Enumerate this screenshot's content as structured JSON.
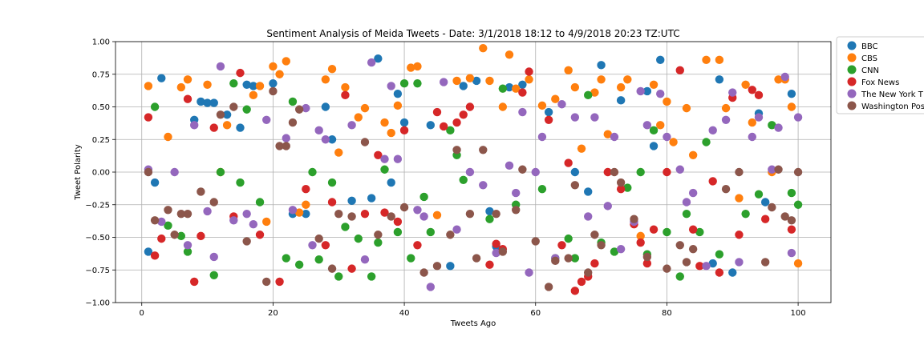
{
  "chart_data": {
    "type": "scatter",
    "title": "Sentiment Analysis of Meida Tweets - Date: 3/1/2018 18:12 to 4/9/2018 20:23 TZ:UTC",
    "xlabel": "Tweets Ago",
    "ylabel": "Tweet Polarity",
    "xlim": [
      -4,
      105
    ],
    "ylim": [
      -1.0,
      1.0
    ],
    "x_ticks": [
      0,
      20,
      40,
      60,
      80,
      100
    ],
    "x_tick_labels": [
      "0",
      "20",
      "40",
      "60",
      "80",
      "100"
    ],
    "y_ticks": [
      -1.0,
      -0.75,
      -0.5,
      -0.25,
      0.0,
      0.25,
      0.5,
      0.75,
      1.0
    ],
    "y_tick_labels": [
      "−1.00",
      "−0.75",
      "−0.50",
      "−0.25",
      "0.00",
      "0.25",
      "0.50",
      "0.75",
      "1.00"
    ],
    "grid": true,
    "legend_position": "outside-top-right",
    "legend_labels": [
      "BBC",
      "CBS",
      "CNN",
      "Fox News",
      "The New York T",
      "Washington Pos"
    ],
    "series": [
      {
        "name": "BBC",
        "color": "#1f77b4",
        "x": [
          1,
          2,
          3,
          8,
          9,
          10,
          11,
          13,
          15,
          16,
          17,
          20,
          23,
          25,
          28,
          29,
          32,
          35,
          36,
          38,
          39,
          40,
          44,
          47,
          49,
          51,
          53,
          54,
          56,
          58,
          62,
          66,
          68,
          70,
          73,
          77,
          78,
          79,
          87,
          88,
          90,
          94,
          95,
          99
        ],
        "y": [
          -0.61,
          -0.08,
          0.72,
          0.4,
          0.54,
          0.53,
          0.53,
          0.44,
          0.34,
          0.67,
          0.66,
          0.68,
          -0.32,
          -0.32,
          0.5,
          0.25,
          -0.22,
          -0.2,
          0.87,
          -0.08,
          0.6,
          0.38,
          0.36,
          -0.72,
          0.66,
          0.7,
          -0.3,
          -0.57,
          0.65,
          0.67,
          0.46,
          0.0,
          -0.15,
          0.82,
          0.55,
          0.62,
          0.2,
          0.86,
          -0.7,
          0.71,
          -0.77,
          0.45,
          -0.23,
          0.6
        ]
      },
      {
        "name": "CBS",
        "color": "#ff7f0e",
        "x": [
          1,
          4,
          6,
          7,
          10,
          12,
          13,
          17,
          18,
          19,
          20,
          21,
          22,
          24,
          25,
          28,
          29,
          30,
          31,
          33,
          34,
          37,
          38,
          39,
          41,
          42,
          45,
          48,
          50,
          52,
          53,
          55,
          56,
          57,
          59,
          61,
          63,
          65,
          66,
          67,
          69,
          70,
          71,
          73,
          74,
          76,
          78,
          79,
          80,
          81,
          83,
          84,
          86,
          88,
          89,
          91,
          92,
          93,
          96,
          97,
          98,
          99,
          100
        ],
        "y": [
          0.66,
          0.27,
          0.65,
          0.71,
          0.67,
          0.0,
          0.36,
          0.59,
          0.66,
          -0.38,
          0.81,
          0.75,
          0.85,
          -0.31,
          -0.25,
          0.71,
          0.79,
          0.15,
          0.65,
          0.42,
          0.49,
          0.38,
          0.3,
          0.51,
          0.8,
          0.81,
          -0.33,
          0.7,
          0.72,
          0.95,
          0.7,
          0.5,
          0.9,
          0.64,
          0.71,
          0.51,
          0.56,
          0.78,
          0.65,
          0.18,
          0.61,
          0.71,
          0.29,
          0.65,
          0.71,
          -0.49,
          0.67,
          0.36,
          0.54,
          0.23,
          0.49,
          0.13,
          0.86,
          0.86,
          0.49,
          -0.2,
          0.67,
          0.38,
          0.0,
          0.71,
          0.71,
          0.5,
          -0.7
        ]
      },
      {
        "name": "CNN",
        "color": "#2ca02c",
        "x": [
          2,
          4,
          6,
          7,
          11,
          12,
          14,
          15,
          16,
          18,
          22,
          23,
          24,
          26,
          27,
          29,
          30,
          31,
          33,
          35,
          36,
          37,
          39,
          40,
          41,
          42,
          43,
          44,
          47,
          48,
          49,
          53,
          55,
          57,
          61,
          63,
          65,
          66,
          68,
          70,
          72,
          74,
          76,
          77,
          78,
          80,
          82,
          83,
          85,
          86,
          88,
          92,
          94,
          96,
          99,
          100
        ],
        "y": [
          0.5,
          -0.41,
          -0.49,
          -0.61,
          -0.79,
          0.0,
          0.68,
          -0.08,
          0.48,
          -0.23,
          -0.66,
          0.54,
          -0.71,
          0.0,
          -0.67,
          -0.08,
          -0.8,
          -0.42,
          -0.51,
          -0.8,
          -0.54,
          0.02,
          -0.46,
          0.68,
          -0.66,
          0.68,
          -0.19,
          -0.46,
          0.32,
          0.13,
          -0.06,
          -0.36,
          0.64,
          -0.25,
          -0.13,
          -0.66,
          -0.51,
          -0.66,
          0.59,
          -0.54,
          -0.61,
          -0.12,
          0.0,
          -0.63,
          0.32,
          -0.46,
          -0.8,
          -0.32,
          -0.46,
          0.23,
          -0.63,
          -0.32,
          -0.17,
          0.36,
          -0.16,
          -0.25
        ]
      },
      {
        "name": "Fox News",
        "color": "#d62728",
        "x": [
          1,
          2,
          3,
          7,
          8,
          9,
          11,
          14,
          15,
          18,
          21,
          25,
          28,
          29,
          31,
          32,
          34,
          36,
          37,
          39,
          40,
          42,
          45,
          46,
          48,
          49,
          50,
          53,
          54,
          55,
          58,
          59,
          62,
          64,
          65,
          66,
          67,
          68,
          69,
          71,
          73,
          75,
          76,
          77,
          78,
          80,
          82,
          84,
          85,
          87,
          88,
          90,
          91,
          93,
          94,
          95,
          99
        ],
        "y": [
          0.42,
          -0.64,
          -0.51,
          0.56,
          -0.84,
          -0.49,
          0.34,
          -0.34,
          0.76,
          -0.48,
          -0.84,
          -0.13,
          -0.56,
          -0.23,
          0.59,
          -0.74,
          -0.32,
          0.13,
          -0.31,
          -0.38,
          0.32,
          -0.56,
          0.46,
          0.35,
          0.38,
          0.44,
          0.5,
          -0.71,
          -0.55,
          -0.59,
          0.61,
          0.77,
          0.4,
          -0.56,
          0.07,
          -0.91,
          -0.84,
          -0.8,
          -0.7,
          0.0,
          -0.13,
          -0.4,
          -0.54,
          -0.7,
          -0.44,
          0.0,
          0.78,
          -0.44,
          -0.72,
          -0.07,
          -0.77,
          0.57,
          -0.48,
          0.63,
          0.59,
          -0.36,
          -0.44
        ]
      },
      {
        "name": "The New York T",
        "color": "#9467bd",
        "x": [
          1,
          3,
          5,
          7,
          8,
          10,
          11,
          12,
          14,
          16,
          17,
          19,
          22,
          23,
          25,
          26,
          27,
          28,
          32,
          34,
          35,
          37,
          38,
          39,
          42,
          43,
          44,
          46,
          48,
          50,
          52,
          54,
          56,
          57,
          58,
          59,
          60,
          61,
          63,
          64,
          66,
          68,
          69,
          71,
          72,
          73,
          75,
          76,
          77,
          79,
          80,
          82,
          83,
          84,
          86,
          87,
          89,
          90,
          91,
          93,
          94,
          96,
          97,
          98,
          99,
          100
        ],
        "y": [
          0.02,
          -0.38,
          0.0,
          -0.56,
          0.36,
          -0.3,
          -0.65,
          0.81,
          -0.37,
          -0.32,
          -0.4,
          0.4,
          0.26,
          -0.29,
          0.49,
          -0.56,
          0.32,
          0.25,
          0.36,
          -0.67,
          0.84,
          0.1,
          0.66,
          0.1,
          -0.29,
          -0.34,
          -0.88,
          0.69,
          -0.44,
          0.0,
          -0.1,
          -0.62,
          0.05,
          -0.16,
          0.46,
          -0.77,
          0.0,
          0.27,
          -0.66,
          0.52,
          0.42,
          -0.34,
          0.42,
          -0.26,
          0.27,
          -0.59,
          -0.38,
          0.62,
          0.36,
          0.6,
          0.27,
          0.02,
          -0.23,
          -0.16,
          -0.72,
          0.32,
          0.4,
          0.61,
          -0.69,
          0.27,
          0.42,
          0.02,
          0.34,
          0.73,
          -0.62,
          0.42
        ]
      },
      {
        "name": "Washington Pos",
        "color": "#8c564b",
        "x": [
          1,
          2,
          4,
          5,
          6,
          7,
          9,
          11,
          12,
          14,
          16,
          19,
          20,
          21,
          22,
          23,
          24,
          27,
          29,
          30,
          32,
          34,
          36,
          38,
          40,
          43,
          45,
          47,
          48,
          50,
          51,
          52,
          54,
          55,
          57,
          58,
          60,
          62,
          63,
          65,
          66,
          68,
          69,
          70,
          72,
          73,
          75,
          77,
          80,
          82,
          83,
          84,
          89,
          91,
          95,
          96,
          97,
          98,
          99,
          100
        ],
        "y": [
          0.0,
          -0.37,
          -0.29,
          -0.48,
          -0.32,
          -0.32,
          -0.15,
          -0.23,
          0.44,
          0.5,
          -0.53,
          -0.84,
          0.62,
          0.2,
          0.2,
          0.38,
          0.48,
          -0.51,
          -0.74,
          -0.32,
          -0.34,
          0.23,
          -0.48,
          -0.34,
          -0.27,
          -0.77,
          -0.72,
          -0.48,
          0.17,
          -0.32,
          -0.66,
          0.17,
          -0.32,
          -0.61,
          -0.29,
          0.02,
          -0.53,
          -0.88,
          -0.68,
          -0.66,
          -0.1,
          -0.77,
          -0.48,
          -0.56,
          0.0,
          -0.08,
          -0.36,
          -0.65,
          -0.74,
          -0.56,
          -0.69,
          -0.59,
          -0.13,
          0.0,
          -0.69,
          -0.27,
          0.02,
          -0.34,
          -0.37,
          0.0
        ]
      }
    ]
  }
}
